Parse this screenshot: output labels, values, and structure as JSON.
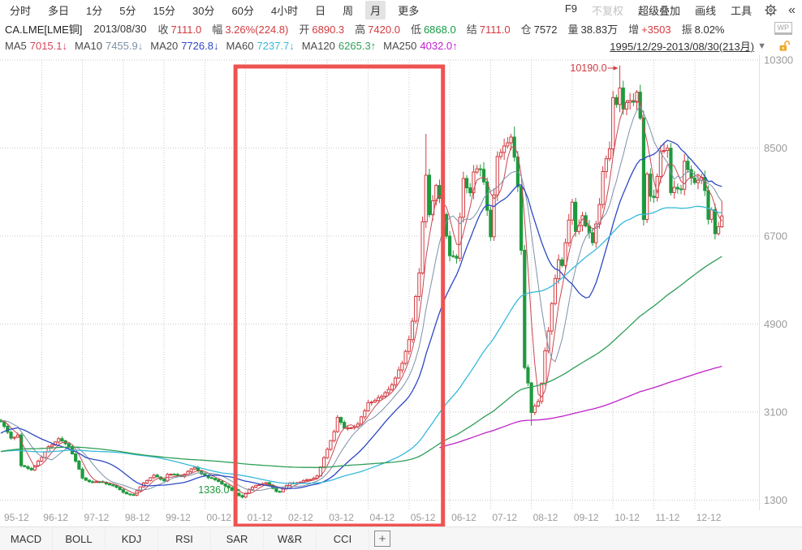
{
  "toolbar": {
    "left_items": [
      {
        "label": "分时"
      },
      {
        "label": "多日"
      },
      {
        "label": "1分"
      },
      {
        "label": "5分"
      },
      {
        "label": "15分"
      },
      {
        "label": "30分"
      },
      {
        "label": "60分"
      },
      {
        "label": "4小时"
      },
      {
        "label": "日"
      },
      {
        "label": "周"
      },
      {
        "label": "月",
        "selected": true
      },
      {
        "label": "更多"
      }
    ],
    "right_items": [
      {
        "label": "F9"
      },
      {
        "label": "不复权",
        "muted": true
      },
      {
        "label": "超级叠加"
      },
      {
        "label": "画线"
      },
      {
        "label": "工具"
      }
    ],
    "gear_icon": "gear",
    "collapse_icon": "«"
  },
  "quote_bar": {
    "symbol": "CA.LME[LME铜]",
    "date": "2013/08/30",
    "fields": [
      {
        "label": "收",
        "value": "7111.0",
        "tone": "up"
      },
      {
        "label": "幅",
        "value": "3.26%(224.8)",
        "tone": "up"
      },
      {
        "label": "开",
        "value": "6890.3",
        "tone": "up"
      },
      {
        "label": "高",
        "value": "7420.0",
        "tone": "up"
      },
      {
        "label": "低",
        "value": "6868.0",
        "tone": "down"
      },
      {
        "label": "结",
        "value": "7111.0",
        "tone": "up"
      },
      {
        "label": "仓",
        "value": "7572",
        "tone": "plain"
      },
      {
        "label": "量",
        "value": "38.83万",
        "tone": "plain"
      },
      {
        "label": "增",
        "value": "+3503",
        "tone": "up"
      },
      {
        "label": "振",
        "value": "8.02%",
        "tone": "plain"
      }
    ],
    "wp_badge": "WP"
  },
  "ma_bar": {
    "items": [
      {
        "label": "MA5",
        "value": "7015.1",
        "arrow": "↓",
        "color": "#d2485a"
      },
      {
        "label": "MA10",
        "value": "7455.9",
        "arrow": "↓",
        "color": "#7e90a8"
      },
      {
        "label": "MA20",
        "value": "7726.8",
        "arrow": "↓",
        "color": "#2d49c4"
      },
      {
        "label": "MA60",
        "value": "7237.7",
        "arrow": "↓",
        "color": "#36b9da"
      },
      {
        "label": "MA120",
        "value": "6265.3",
        "arrow": "↑",
        "color": "#2f9e57"
      },
      {
        "label": "MA250",
        "value": "4032.0",
        "arrow": "↑",
        "color": "#bf21c9"
      }
    ],
    "range_label": "1995/12/29-2013/08/30(213月)",
    "dropdown_icon": "▼",
    "lock_icon": "unlocked-orange"
  },
  "chart": {
    "y_ticks": [
      10300,
      8500,
      6700,
      4900,
      3100,
      1300
    ],
    "x_ticks": [
      "95-12",
      "96-12",
      "97-12",
      "98-12",
      "99-12",
      "00-12",
      "01-12",
      "02-12",
      "03-12",
      "04-12",
      "05-12",
      "06-12",
      "07-12",
      "08-12",
      "09-12",
      "10-12",
      "11-12",
      "12-12"
    ],
    "colors": {
      "up": "#d23a3f",
      "down": "#1f9a3e",
      "grid": "#c9c9c9",
      "axis_text": "#9b9b9b",
      "box": "#ee5351",
      "separator": "#e2e2e2"
    },
    "annotations": {
      "high_label": "10190.0",
      "high_month": 182,
      "high_price": 10190,
      "low_label": "1336.0",
      "low_month": 71,
      "low_price": 1336,
      "highlight_box": {
        "from_month": 69,
        "to_month": 130
      }
    }
  },
  "chart_data": {
    "type": "candlestick",
    "period": "monthly",
    "months_shown": 213,
    "first_month": "1995-12",
    "last_month": "2013-08",
    "price_range": [
      1300,
      10300
    ],
    "anchors": [
      [
        -120,
        1450
      ],
      [
        -100,
        2150
      ],
      [
        -84,
        2750
      ],
      [
        -72,
        2650
      ],
      [
        -60,
        2350
      ],
      [
        -48,
        2280
      ],
      [
        -36,
        2050
      ],
      [
        -30,
        1780
      ],
      [
        -24,
        1900
      ],
      [
        -18,
        2150
      ],
      [
        -12,
        2600
      ],
      [
        -6,
        3000
      ],
      [
        -2,
        2950
      ],
      [
        0,
        2870
      ],
      [
        3,
        2600
      ],
      [
        5,
        2650
      ],
      [
        6,
        2000
      ],
      [
        9,
        1920
      ],
      [
        12,
        2150
      ],
      [
        14,
        2420
      ],
      [
        17,
        2550
      ],
      [
        20,
        2400
      ],
      [
        24,
        1750
      ],
      [
        27,
        1680
      ],
      [
        30,
        1660
      ],
      [
        33,
        1580
      ],
      [
        36,
        1475
      ],
      [
        39,
        1400
      ],
      [
        42,
        1650
      ],
      [
        45,
        1790
      ],
      [
        48,
        1720
      ],
      [
        49,
        1845
      ],
      [
        53,
        1780
      ],
      [
        57,
        1960
      ],
      [
        60,
        1820
      ],
      [
        61,
        1760
      ],
      [
        64,
        1680
      ],
      [
        66,
        1580
      ],
      [
        69,
        1450
      ],
      [
        71,
        1380
      ],
      [
        73,
        1510
      ],
      [
        75,
        1600
      ],
      [
        78,
        1640
      ],
      [
        81,
        1500
      ],
      [
        82,
        1490
      ],
      [
        85,
        1640
      ],
      [
        88,
        1660
      ],
      [
        91,
        1730
      ],
      [
        93,
        1820
      ],
      [
        96,
        2320
      ],
      [
        98,
        2700
      ],
      [
        99,
        2980
      ],
      [
        101,
        2750
      ],
      [
        103,
        2820
      ],
      [
        105,
        2870
      ],
      [
        107,
        3100
      ],
      [
        108,
        3280
      ],
      [
        110,
        3330
      ],
      [
        112,
        3400
      ],
      [
        114,
        3610
      ],
      [
        116,
        3820
      ],
      [
        118,
        4060
      ],
      [
        120,
        4580
      ],
      [
        121,
        4950
      ],
      [
        123,
        5900
      ],
      [
        124,
        7000
      ],
      [
        125,
        8045
      ],
      [
        126,
        7250
      ],
      [
        128,
        7700
      ],
      [
        130,
        7100
      ],
      [
        132,
        6290
      ],
      [
        134,
        6200
      ],
      [
        136,
        7970
      ],
      [
        138,
        7650
      ],
      [
        139,
        7980
      ],
      [
        141,
        8010
      ],
      [
        142,
        7800
      ],
      [
        144,
        6650
      ],
      [
        146,
        8320
      ],
      [
        148,
        8680
      ],
      [
        150,
        8700
      ],
      [
        151,
        8230
      ],
      [
        152,
        7650
      ],
      [
        153,
        6400
      ],
      [
        154,
        4010
      ],
      [
        155,
        3680
      ],
      [
        156,
        3070
      ],
      [
        157,
        3220
      ],
      [
        158,
        3350
      ],
      [
        159,
        3750
      ],
      [
        160,
        4400
      ],
      [
        161,
        4750
      ],
      [
        163,
        5780
      ],
      [
        164,
        6200
      ],
      [
        165,
        6100
      ],
      [
        167,
        6980
      ],
      [
        168,
        7375
      ],
      [
        169,
        6850
      ],
      [
        171,
        7200
      ],
      [
        172,
        6900
      ],
      [
        174,
        6500
      ],
      [
        176,
        7350
      ],
      [
        177,
        8000
      ],
      [
        179,
        8460
      ],
      [
        180,
        9600
      ],
      [
        181,
        9535
      ],
      [
        182,
        9850
      ],
      [
        183,
        9300
      ],
      [
        184,
        9340
      ],
      [
        186,
        9400
      ],
      [
        187,
        9650
      ],
      [
        188,
        9100
      ],
      [
        189,
        7000
      ],
      [
        190,
        7940
      ],
      [
        191,
        7560
      ],
      [
        192,
        7600
      ],
      [
        194,
        8450
      ],
      [
        195,
        8370
      ],
      [
        196,
        8400
      ],
      [
        197,
        7550
      ],
      [
        198,
        7700
      ],
      [
        200,
        7620
      ],
      [
        201,
        8200
      ],
      [
        203,
        8000
      ],
      [
        204,
        7900
      ],
      [
        206,
        7830
      ],
      [
        207,
        7540
      ],
      [
        208,
        7000
      ],
      [
        209,
        7240
      ],
      [
        210,
        6750
      ],
      [
        211,
        6890
      ],
      [
        212,
        7111
      ]
    ],
    "wick_overrides": {
      "71": {
        "low": 1336
      },
      "125": {
        "high": 8790
      },
      "151": {
        "high": 8940
      },
      "156": {
        "low": 2825
      },
      "182": {
        "high": 10190
      },
      "212": {
        "high": 7420,
        "low": 6868
      }
    },
    "ma_lines": [
      {
        "window": 5,
        "color": "#c84852"
      },
      {
        "window": 10,
        "color": "#7e90a8"
      },
      {
        "window": 20,
        "color": "#2d49c4"
      },
      {
        "window": 60,
        "color": "#36b9da"
      },
      {
        "window": 120,
        "color": "#2f9e57"
      },
      {
        "window": 250,
        "color": "#bf21c9",
        "start_month": 129
      }
    ]
  },
  "indicator_tabs": {
    "items": [
      "MACD",
      "BOLL",
      "KDJ",
      "RSI",
      "SAR",
      "W&R",
      "CCI"
    ],
    "add_button": "+"
  }
}
